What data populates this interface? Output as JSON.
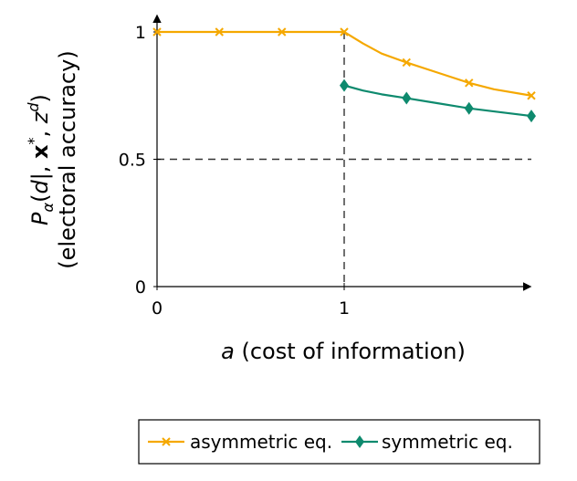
{
  "chart_data": {
    "type": "line",
    "xlabel_var": "a",
    "xlabel_rest": " (cost of information)",
    "ylabel_line1": "P",
    "ylabel_line2": "(electoral accuracy)",
    "xlim": [
      0,
      2
    ],
    "ylim": [
      0,
      1
    ],
    "x_ticks": [
      {
        "value": 0,
        "label": "0"
      },
      {
        "value": 1,
        "label": "1"
      }
    ],
    "y_ticks": [
      {
        "value": 0,
        "label": "0"
      },
      {
        "value": 0.5,
        "label": "0.5"
      },
      {
        "value": 1,
        "label": "1"
      }
    ],
    "reference_lines": [
      {
        "orientation": "horizontal",
        "value": 0.5,
        "style": "dashed"
      },
      {
        "orientation": "vertical",
        "value": 1,
        "style": "dashed"
      }
    ],
    "series": [
      {
        "name": "asymmetric eq.",
        "color": "#f5a800",
        "marker": "x",
        "marker_x": [
          0,
          0.333,
          0.667,
          1,
          1.333,
          1.667,
          2
        ],
        "marker_y": [
          1,
          1,
          1,
          1,
          0.88,
          0.8,
          0.75
        ],
        "curve_x": [
          0,
          1,
          1.1,
          1.2,
          1.333,
          1.5,
          1.667,
          1.8,
          2
        ],
        "curve_y": [
          1,
          1,
          0.955,
          0.915,
          0.88,
          0.84,
          0.8,
          0.775,
          0.75
        ]
      },
      {
        "name": "symmetric eq.",
        "color": "#0e8a6e",
        "marker": "diamond",
        "marker_x": [
          1,
          1.333,
          1.667,
          2
        ],
        "marker_y": [
          0.79,
          0.74,
          0.7,
          0.67
        ],
        "curve_x": [
          1,
          1.1,
          1.2,
          1.333,
          1.5,
          1.667,
          1.8,
          2
        ],
        "curve_y": [
          0.79,
          0.77,
          0.755,
          0.74,
          0.72,
          0.7,
          0.688,
          0.67
        ]
      }
    ],
    "legend": {
      "position": "bottom-right"
    }
  }
}
